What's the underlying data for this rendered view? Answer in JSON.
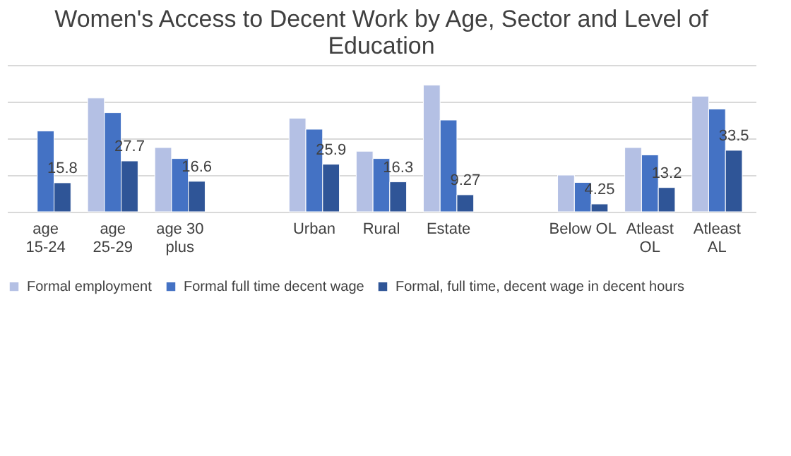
{
  "chart_data": {
    "type": "bar",
    "title": "Women's Access to Decent Work by Age, Sector and Level of Education",
    "categories": [
      "age 15-24",
      "age 25-29",
      "age 30 plus",
      null,
      "Urban",
      "Rural",
      "Estate",
      null,
      "Below OL",
      "Atleast OL",
      "Atleast AL"
    ],
    "ylim": [
      0,
      80
    ],
    "tick_labels": "x",
    "grid": "y",
    "legend": "bottom",
    "series": [
      {
        "name": "Formal employment",
        "color": "#b4c0e4",
        "values": [
          null,
          62,
          35,
          null,
          51,
          33,
          69,
          null,
          20,
          35,
          63
        ]
      },
      {
        "name": "Formal full time decent wage",
        "color": "#4472c4",
        "values": [
          44,
          54,
          29,
          null,
          45,
          29,
          50,
          null,
          16,
          31,
          56
        ]
      },
      {
        "name": "Formal, full time, decent wage in decent hours",
        "color": "#2f5597",
        "values": [
          15.8,
          27.7,
          16.6,
          null,
          25.9,
          16.3,
          9.27,
          null,
          4.25,
          13.2,
          33.5
        ],
        "value_labels": [
          "15.8",
          "27.7",
          "16.6",
          null,
          "25.9",
          "16.3",
          "9.27",
          null,
          "4.25",
          "13.2",
          "33.5"
        ]
      }
    ]
  }
}
